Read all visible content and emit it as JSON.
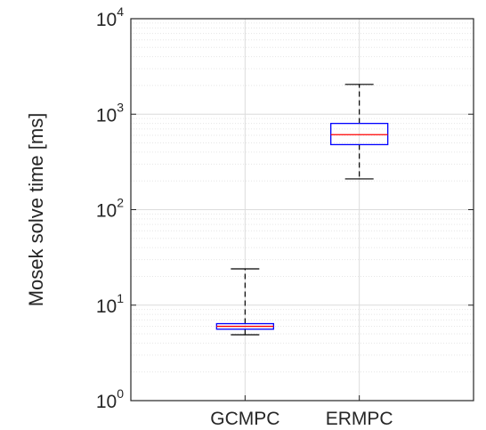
{
  "chart_data": {
    "type": "box",
    "title": "",
    "xlabel": "",
    "ylabel": "Mosek solve time [ms]",
    "yscale": "log",
    "ylim": [
      1,
      10000
    ],
    "y_ticks": [
      {
        "value": 1,
        "base": "10",
        "exp": "0"
      },
      {
        "value": 10,
        "base": "10",
        "exp": "1"
      },
      {
        "value": 100,
        "base": "10",
        "exp": "2"
      },
      {
        "value": 1000,
        "base": "10",
        "exp": "3"
      },
      {
        "value": 10000,
        "base": "10",
        "exp": "4"
      }
    ],
    "grid": true,
    "minor_grid": true,
    "categories": [
      "GCMPC",
      "ERMPC"
    ],
    "boxes": [
      {
        "name": "GCMPC",
        "whisker_low": 4.9,
        "q1": 5.6,
        "median": 6.0,
        "q3": 6.4,
        "whisker_high": 24
      },
      {
        "name": "ERMPC",
        "whisker_low": 210,
        "q1": 480,
        "median": 610,
        "q3": 800,
        "whisker_high": 2050
      }
    ],
    "colors": {
      "box": "#0000ff",
      "median": "#ff0000",
      "whisker": "#000000",
      "axis": "#262626",
      "grid": "#dcdcdc"
    }
  }
}
